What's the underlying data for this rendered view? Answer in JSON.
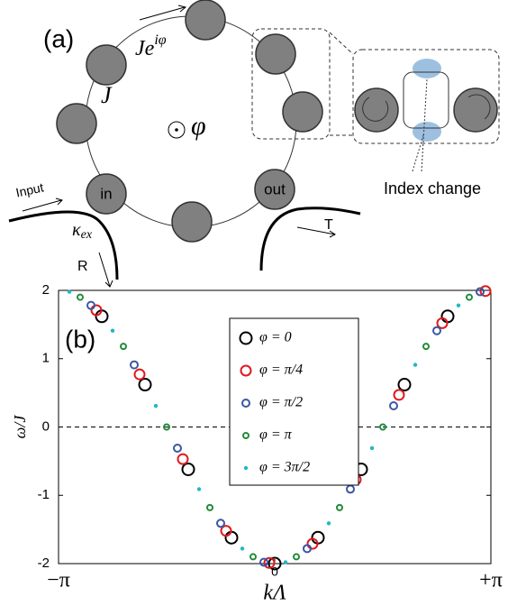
{
  "diagram": {
    "label": "(a)",
    "hopping": {
      "base": "Je",
      "exponent": "iφ"
    },
    "coupling": "J",
    "flux": "φ",
    "input": "Input",
    "kappa": {
      "base": "κ",
      "sub": "ex"
    },
    "reflected": "R",
    "transmitted": "T",
    "in_port": "in",
    "out_port": "out",
    "inset_note": "Index change"
  },
  "chart_data": {
    "type": "scatter",
    "panel_label": "(b)",
    "xlabel": "kΛ",
    "ylabel": "ω/J",
    "xlim": [
      -1,
      1
    ],
    "xticks": [
      {
        "value": -1,
        "label": "−π"
      },
      0,
      {
        "value": 1,
        "label": "+π"
      }
    ],
    "ylim": [
      -2,
      2
    ],
    "yticks": [
      -2,
      -1,
      0,
      1,
      2
    ],
    "hline": 0,
    "series": [
      {
        "name": "φ = 0",
        "color": "#000000",
        "marker": "open",
        "x": [
          -0.8,
          -0.6,
          -0.4,
          -0.2,
          0,
          0.2,
          0.4,
          0.6,
          0.8
        ],
        "values": [
          1.62,
          0.62,
          -0.62,
          -1.62,
          -2,
          -1.62,
          -0.62,
          0.62,
          1.62
        ]
      },
      {
        "name": "φ = π/4",
        "color": "#e0191e",
        "marker": "open",
        "x": [
          -0.825,
          -0.625,
          -0.425,
          -0.225,
          -0.025,
          0.175,
          0.375,
          0.575,
          0.775,
          0.975
        ],
        "values": [
          1.71,
          0.77,
          -0.47,
          -1.52,
          -1.99,
          -1.71,
          -0.77,
          0.47,
          1.52,
          1.99
        ]
      },
      {
        "name": "φ = π/2",
        "color": "#3a56a6",
        "marker": "open",
        "x": [
          -0.85,
          -0.65,
          -0.45,
          -0.25,
          -0.05,
          0.15,
          0.35,
          0.55,
          0.75,
          0.95
        ],
        "values": [
          1.78,
          0.91,
          -0.31,
          -1.41,
          -1.98,
          -1.78,
          -0.91,
          0.31,
          1.41,
          1.98
        ]
      },
      {
        "name": "φ = π",
        "color": "#228b3a",
        "marker": "open",
        "x": [
          -0.9,
          -0.7,
          -0.5,
          -0.3,
          -0.1,
          0.1,
          0.3,
          0.5,
          0.7,
          0.9
        ],
        "values": [
          1.9,
          1.18,
          0,
          -1.18,
          -1.9,
          -1.9,
          -1.18,
          0,
          1.18,
          1.9
        ]
      },
      {
        "name": "φ = 3π/2",
        "color": "#1fb8c4",
        "marker": "filled",
        "x": [
          -0.95,
          -0.75,
          -0.55,
          -0.35,
          -0.15,
          0.05,
          0.25,
          0.45,
          0.65,
          0.85
        ],
        "values": [
          1.98,
          1.41,
          0.31,
          -0.91,
          -1.78,
          -1.98,
          -1.41,
          -0.31,
          0.91,
          1.78
        ]
      }
    ]
  }
}
